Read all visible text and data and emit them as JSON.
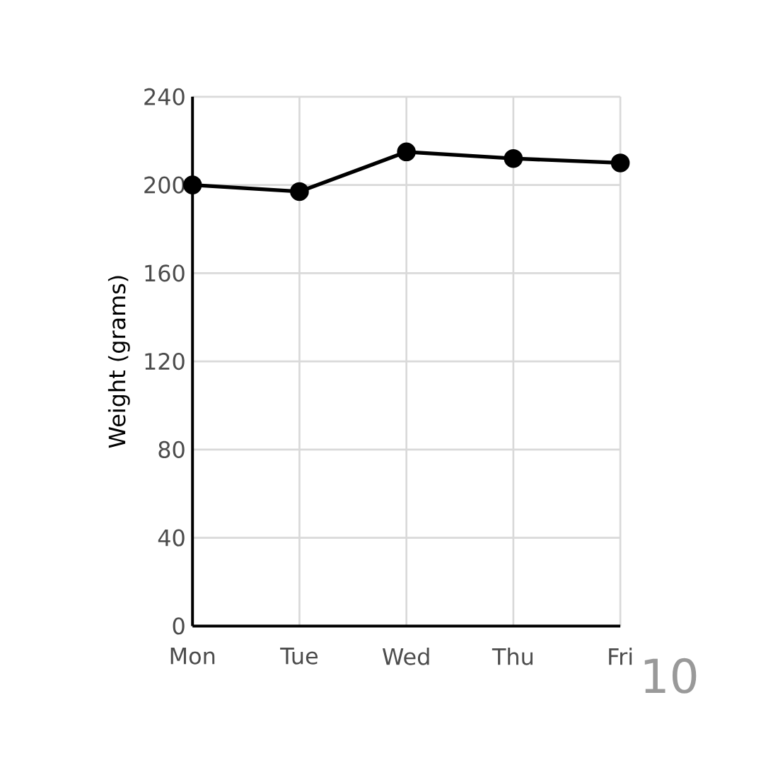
{
  "chart_data": {
    "type": "line",
    "ylabel": "Weight (grams)",
    "categories": [
      "Mon",
      "Tue",
      "Wed",
      "Thu",
      "Fri"
    ],
    "series": [
      {
        "color": "#000000",
        "values": [
          200,
          197,
          215,
          212,
          210
        ]
      }
    ],
    "ylim": [
      0,
      240
    ],
    "yticks": [
      0,
      40,
      80,
      120,
      160,
      200,
      240
    ],
    "grid": true,
    "marker": "circle",
    "line_style": "solid",
    "annotations": [
      "10"
    ]
  }
}
